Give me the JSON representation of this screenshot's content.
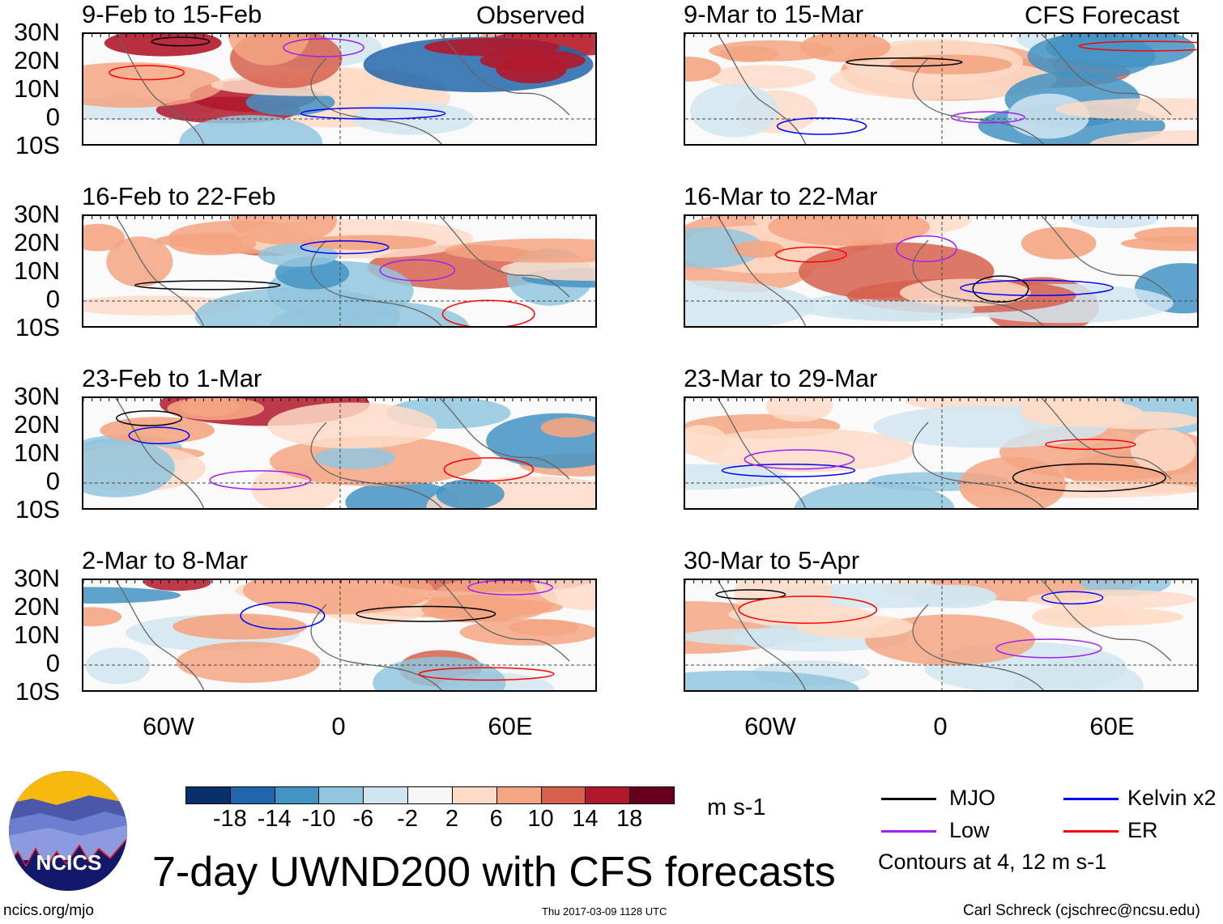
{
  "column_headers": {
    "left": "Observed",
    "right": "CFS Forecast"
  },
  "panels_left": [
    {
      "title": "9-Feb to 15-Feb"
    },
    {
      "title": "16-Feb to 22-Feb"
    },
    {
      "title": "23-Feb to 1-Mar"
    },
    {
      "title": "2-Mar to 8-Mar"
    }
  ],
  "panels_right": [
    {
      "title": "9-Mar to 15-Mar"
    },
    {
      "title": "16-Mar to 22-Mar"
    },
    {
      "title": "23-Mar to 29-Mar"
    },
    {
      "title": "30-Mar to 5-Apr"
    }
  ],
  "lat_labels": [
    "30N",
    "20N",
    "10N",
    "0",
    "10S"
  ],
  "lon_labels": [
    "60W",
    "0",
    "60E"
  ],
  "colorbar": {
    "colors": [
      "#08306b",
      "#2166ac",
      "#4393c3",
      "#92c5de",
      "#d1e5f0",
      "#f7f7f7",
      "#fddbc7",
      "#f4a582",
      "#d6604d",
      "#b2182b",
      "#67001f"
    ],
    "ticks": [
      "-18",
      "-14",
      "-10",
      "-6",
      "-2",
      "2",
      "6",
      "10",
      "14",
      "18"
    ],
    "units": "m s-1"
  },
  "legend": {
    "items": [
      {
        "label": "MJO",
        "color": "#000000"
      },
      {
        "label": "Kelvin x2",
        "color": "#0000ff"
      },
      {
        "label": "Low",
        "color": "#a020f0"
      },
      {
        "label": "ER",
        "color": "#ff0000"
      }
    ],
    "note": "Contours at 4, 12 m s-1"
  },
  "title": "7-day UWND200 with CFS forecasts",
  "logo_text": "NCICS",
  "footer": {
    "url": "ncics.org/mjo",
    "timestamp": "Thu 2017-03-09 1128 UTC",
    "author": "Carl Schreck (cjschrec@ncsu.edu)"
  }
}
